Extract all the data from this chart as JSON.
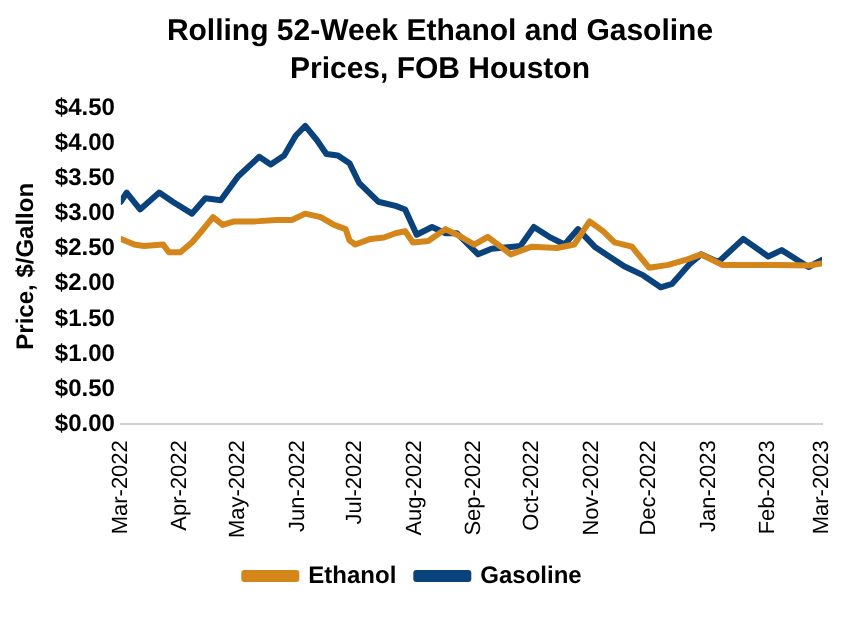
{
  "chart_data": {
    "type": "line",
    "title": "Rolling 52-Week Ethanol and Gasoline Prices, FOB Houston",
    "ylabel": "Price, $/Gallon",
    "xlim": [
      "2022-03-01",
      "2023-03-01"
    ],
    "xticks": [
      {
        "value": "2022-03-01",
        "label": "Mar-2022"
      },
      {
        "value": "2022-04-01",
        "label": "Apr-2022"
      },
      {
        "value": "2022-05-01",
        "label": "May-2022"
      },
      {
        "value": "2022-06-01",
        "label": "Jun-2022"
      },
      {
        "value": "2022-07-01",
        "label": "Jul-2022"
      },
      {
        "value": "2022-08-01",
        "label": "Aug-2022"
      },
      {
        "value": "2022-09-01",
        "label": "Sep-2022"
      },
      {
        "value": "2022-10-01",
        "label": "Oct-2022"
      },
      {
        "value": "2022-11-01",
        "label": "Nov-2022"
      },
      {
        "value": "2022-12-01",
        "label": "Dec-2022"
      },
      {
        "value": "2023-01-01",
        "label": "Jan-2023"
      },
      {
        "value": "2023-02-01",
        "label": "Feb-2023"
      },
      {
        "value": "2023-03-01",
        "label": "Mar-2023"
      }
    ],
    "ylim": [
      0,
      4.5
    ],
    "yticks": [
      {
        "value": 0,
        "label": "$0.00"
      },
      {
        "value": 0.5,
        "label": "$0.50"
      },
      {
        "value": 1,
        "label": "$1.00"
      },
      {
        "value": 1.5,
        "label": "$1.50"
      },
      {
        "value": 2,
        "label": "$2.00"
      },
      {
        "value": 2.5,
        "label": "$2.50"
      },
      {
        "value": 3,
        "label": "$3.00"
      },
      {
        "value": 3.5,
        "label": "$3.50"
      },
      {
        "value": 4,
        "label": "$4.00"
      },
      {
        "value": 4.5,
        "label": "$4.50"
      }
    ],
    "grid": false,
    "legend": "bottom",
    "marker": "none",
    "line_style": "solid",
    "series": [
      {
        "name": "Ethanol",
        "color": "#d4861a",
        "x": [
          "2022-03-01",
          "2022-03-08",
          "2022-03-13",
          "2022-03-23",
          "2022-03-26",
          "2022-04-01",
          "2022-04-07",
          "2022-04-12",
          "2022-04-18",
          "2022-04-23",
          "2022-04-29",
          "2022-05-10",
          "2022-05-21",
          "2022-05-29",
          "2022-06-05",
          "2022-06-13",
          "2022-06-20",
          "2022-06-26",
          "2022-06-28",
          "2022-07-01",
          "2022-07-09",
          "2022-07-16",
          "2022-07-22",
          "2022-07-27",
          "2022-07-31",
          "2022-08-08",
          "2022-08-17",
          "2022-08-23",
          "2022-09-01",
          "2022-09-08",
          "2022-09-20",
          "2022-10-01",
          "2022-10-14",
          "2022-10-23",
          "2022-10-31",
          "2022-11-07",
          "2022-11-13",
          "2022-11-22",
          "2022-12-01",
          "2022-12-11",
          "2022-12-20",
          "2022-12-28",
          "2023-01-08",
          "2023-01-19",
          "2023-02-07",
          "2023-02-22",
          "2023-03-01"
        ],
        "values": [
          2.64,
          2.56,
          2.54,
          2.56,
          2.45,
          2.45,
          2.59,
          2.75,
          2.95,
          2.84,
          2.89,
          2.89,
          2.91,
          2.91,
          3.0,
          2.95,
          2.84,
          2.78,
          2.62,
          2.56,
          2.64,
          2.66,
          2.72,
          2.75,
          2.59,
          2.61,
          2.78,
          2.7,
          2.56,
          2.67,
          2.42,
          2.53,
          2.51,
          2.56,
          2.89,
          2.75,
          2.59,
          2.53,
          2.23,
          2.27,
          2.34,
          2.42,
          2.27,
          2.27,
          2.27,
          2.26,
          2.29
        ]
      },
      {
        "name": "Gasoline",
        "color": "#0a427c",
        "x": [
          "2022-03-01",
          "2022-03-04",
          "2022-03-11",
          "2022-03-21",
          "2022-03-28",
          "2022-04-07",
          "2022-04-14",
          "2022-04-22",
          "2022-05-01",
          "2022-05-12",
          "2022-05-18",
          "2022-05-25",
          "2022-05-31",
          "2022-06-05",
          "2022-06-11",
          "2022-06-16",
          "2022-06-22",
          "2022-06-28",
          "2022-07-03",
          "2022-07-13",
          "2022-07-22",
          "2022-07-27",
          "2022-08-02",
          "2022-08-10",
          "2022-08-17",
          "2022-08-23",
          "2022-09-03",
          "2022-09-10",
          "2022-09-25",
          "2022-10-02",
          "2022-10-10",
          "2022-10-18",
          "2022-10-25",
          "2022-11-03",
          "2022-11-18",
          "2022-11-28",
          "2022-12-07",
          "2022-12-13",
          "2022-12-22",
          "2022-12-28",
          "2023-01-06",
          "2023-01-19",
          "2023-02-01",
          "2023-02-08",
          "2023-02-22",
          "2023-03-01"
        ],
        "values": [
          3.17,
          3.3,
          3.06,
          3.3,
          3.17,
          3.0,
          3.22,
          3.19,
          3.53,
          3.81,
          3.7,
          3.83,
          4.11,
          4.25,
          4.05,
          3.85,
          3.83,
          3.72,
          3.44,
          3.17,
          3.11,
          3.06,
          2.7,
          2.81,
          2.72,
          2.72,
          2.42,
          2.5,
          2.54,
          2.81,
          2.67,
          2.56,
          2.78,
          2.52,
          2.25,
          2.12,
          1.95,
          2.0,
          2.28,
          2.42,
          2.31,
          2.64,
          2.39,
          2.48,
          2.24,
          2.34
        ]
      }
    ]
  }
}
